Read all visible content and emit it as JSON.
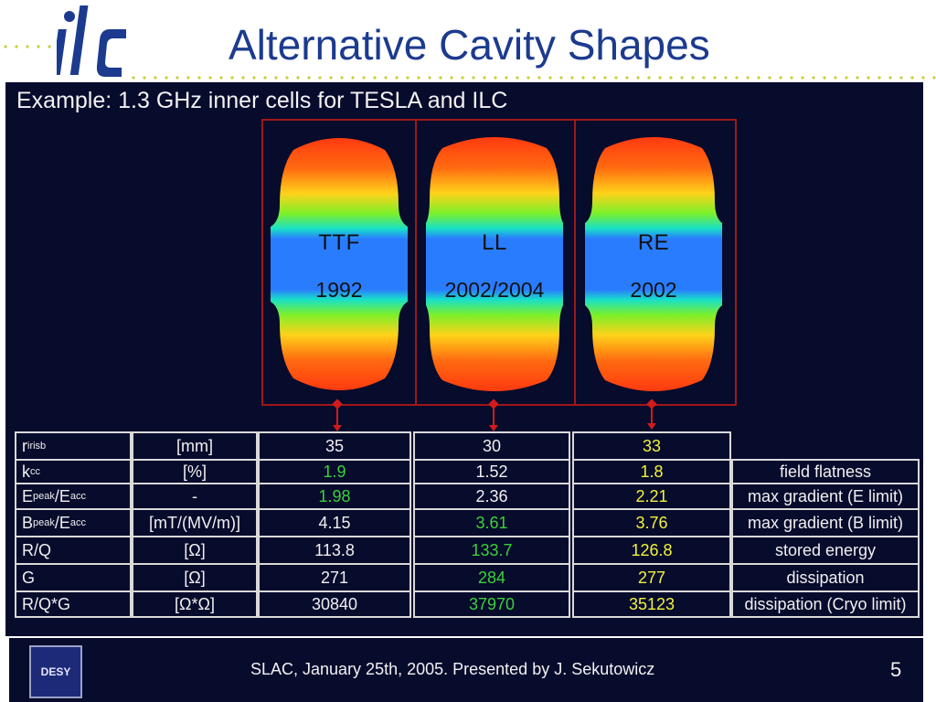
{
  "header": {
    "logo_text": "ilc",
    "title": "Alternative Cavity Shapes"
  },
  "slide": {
    "example": "Example: 1.3 GHz inner cells for TESLA and ILC",
    "cavities": [
      {
        "name": "TTF",
        "year": "1992"
      },
      {
        "name": "LL",
        "year": "2002/2004"
      },
      {
        "name": "RE",
        "year": "2002"
      }
    ],
    "colors": {
      "background": "#070b2c",
      "frame": "#a01818",
      "marker": "#d21b1b",
      "highlight_green": "#39d23a",
      "highlight_yellow": "#f2f23b",
      "title": "#1c3b8f"
    }
  },
  "table": {
    "rows": [
      {
        "param": "r",
        "param_sub": "irisb",
        "param_mid": "",
        "param_sub2": "",
        "unit": "[mm]",
        "ttf": "35",
        "ll": "30",
        "re": "33",
        "comment": ""
      },
      {
        "param": "k",
        "param_sub": "cc",
        "param_mid": "",
        "param_sub2": "",
        "unit": "[%]",
        "ttf": "1.9",
        "ll": "1.52",
        "re": "1.8",
        "comment": "field flatness"
      },
      {
        "param": "E",
        "param_sub": "peak",
        "param_mid": "/E",
        "param_sub2": "acc",
        "unit": "-",
        "ttf": "1.98",
        "ll": "2.36",
        "re": "2.21",
        "comment": "max gradient (E limit)"
      },
      {
        "param": "B",
        "param_sub": "peak",
        "param_mid": "/E",
        "param_sub2": "acc",
        "unit": "[mT/(MV/m)]",
        "ttf": "4.15",
        "ll": "3.61",
        "re": "3.76",
        "comment": "max gradient (B limit)"
      },
      {
        "param": "R/Q",
        "param_sub": "",
        "param_mid": "",
        "param_sub2": "",
        "unit": "[Ω]",
        "ttf": "113.8",
        "ll": "133.7",
        "re": "126.8",
        "comment": "stored energy"
      },
      {
        "param": "G",
        "param_sub": "",
        "param_mid": "",
        "param_sub2": "",
        "unit": "[Ω]",
        "ttf": "271",
        "ll": "284",
        "re": "277",
        "comment": "dissipation"
      },
      {
        "param": "R/Q*G",
        "param_sub": "",
        "param_mid": "",
        "param_sub2": "",
        "unit": "[Ω*Ω]",
        "ttf": "30840",
        "ll": "37970",
        "re": "35123",
        "comment": "dissipation (Cryo limit)"
      }
    ],
    "value_colors": [
      {
        "ttf": "white",
        "ll": "white",
        "re": "yellow"
      },
      {
        "ttf": "green",
        "ll": "white",
        "re": "yellow"
      },
      {
        "ttf": "green",
        "ll": "white",
        "re": "yellow"
      },
      {
        "ttf": "white",
        "ll": "green",
        "re": "yellow"
      },
      {
        "ttf": "white",
        "ll": "green",
        "re": "yellow"
      },
      {
        "ttf": "white",
        "ll": "green",
        "re": "yellow"
      },
      {
        "ttf": "white",
        "ll": "green",
        "re": "yellow"
      }
    ]
  },
  "footer": {
    "logo_text": "DESY",
    "text": "SLAC, January 25th, 2005. Presented by J. Sekutowicz",
    "page": "5"
  }
}
